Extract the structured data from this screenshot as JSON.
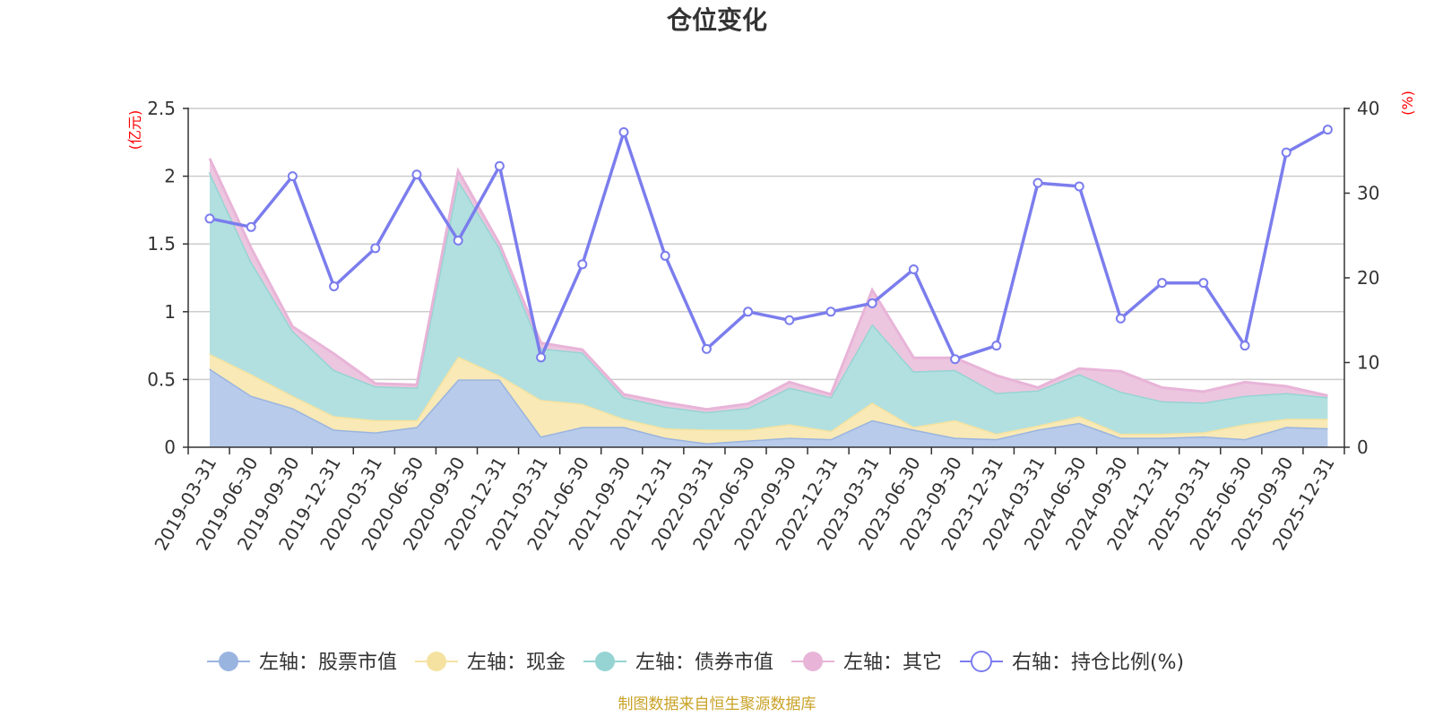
{
  "chart_data": {
    "type": "area",
    "title": "仓位变化",
    "left_unit": "(亿元)",
    "right_unit": "(%)",
    "source": "制图数据来自恒生聚源数据库",
    "x": [
      "2019-03-31",
      "2019-06-30",
      "2019-09-30",
      "2019-12-31",
      "2020-03-31",
      "2020-06-30",
      "2020-09-30",
      "2020-12-31",
      "2021-03-31",
      "2021-06-30",
      "2021-09-30",
      "2021-12-31",
      "2022-03-31",
      "2022-06-30",
      "2022-09-30",
      "2022-12-31",
      "2023-03-31",
      "2023-06-30",
      "2023-09-30",
      "2023-12-31",
      "2024-03-31",
      "2024-06-30",
      "2024-09-30",
      "2024-12-31",
      "2025-03-31",
      "2025-06-30",
      "2025-09-30",
      "2025-12-31"
    ],
    "left_axis": {
      "min": 0,
      "max": 2.5,
      "ticks": [
        "0",
        "0.5",
        "1",
        "1.5",
        "2",
        "2.5"
      ]
    },
    "right_axis": {
      "min": 0,
      "max": 40,
      "ticks": [
        "0",
        "10",
        "20",
        "30",
        "40"
      ]
    },
    "series": [
      {
        "name": "左轴：股票市值",
        "axis": "left",
        "kind": "stack",
        "color": "#9ab4e0",
        "fill": "#b8cbea",
        "values": [
          0.58,
          0.38,
          0.29,
          0.13,
          0.11,
          0.15,
          0.5,
          0.5,
          0.08,
          0.15,
          0.15,
          0.07,
          0.03,
          0.05,
          0.07,
          0.06,
          0.2,
          0.13,
          0.07,
          0.06,
          0.13,
          0.18,
          0.07,
          0.07,
          0.08,
          0.06,
          0.15,
          0.14
        ]
      },
      {
        "name": "左轴：现金",
        "axis": "left",
        "kind": "stack",
        "color": "#f5e2a0",
        "fill": "#f8e9b6",
        "values": [
          0.11,
          0.16,
          0.09,
          0.1,
          0.09,
          0.05,
          0.17,
          0.03,
          0.27,
          0.17,
          0.06,
          0.07,
          0.1,
          0.08,
          0.1,
          0.06,
          0.13,
          0.02,
          0.13,
          0.04,
          0.03,
          0.05,
          0.03,
          0.03,
          0.03,
          0.11,
          0.06,
          0.07
        ]
      },
      {
        "name": "左轴：债券市值",
        "axis": "left",
        "kind": "stack",
        "color": "#96d4d4",
        "fill": "#b2e0e0",
        "values": [
          1.34,
          0.83,
          0.48,
          0.34,
          0.25,
          0.24,
          1.3,
          0.94,
          0.38,
          0.38,
          0.16,
          0.16,
          0.13,
          0.16,
          0.27,
          0.25,
          0.58,
          0.41,
          0.37,
          0.3,
          0.26,
          0.31,
          0.31,
          0.24,
          0.22,
          0.21,
          0.19,
          0.16
        ]
      },
      {
        "name": "左轴：其它",
        "axis": "left",
        "kind": "stack",
        "color": "#e8b4d8",
        "fill": "#ecc6df",
        "values": [
          0.1,
          0.1,
          0.03,
          0.12,
          0.02,
          0.02,
          0.07,
          0.03,
          0.04,
          0.02,
          0.02,
          0.03,
          0.02,
          0.03,
          0.04,
          0.02,
          0.25,
          0.1,
          0.09,
          0.13,
          0.02,
          0.04,
          0.15,
          0.1,
          0.08,
          0.1,
          0.05,
          0.01
        ]
      },
      {
        "name": "右轴：持仓比例(%)",
        "axis": "right",
        "kind": "line",
        "color": "#7b7ded",
        "values": [
          27.0,
          26.0,
          32.0,
          19.0,
          23.5,
          32.2,
          24.4,
          33.2,
          10.6,
          21.6,
          37.2,
          22.6,
          11.6,
          16.0,
          15.0,
          16.0,
          17.0,
          21.0,
          10.4,
          12.0,
          31.2,
          30.8,
          15.2,
          19.4,
          19.4,
          12.0,
          34.8,
          37.5
        ]
      }
    ]
  }
}
